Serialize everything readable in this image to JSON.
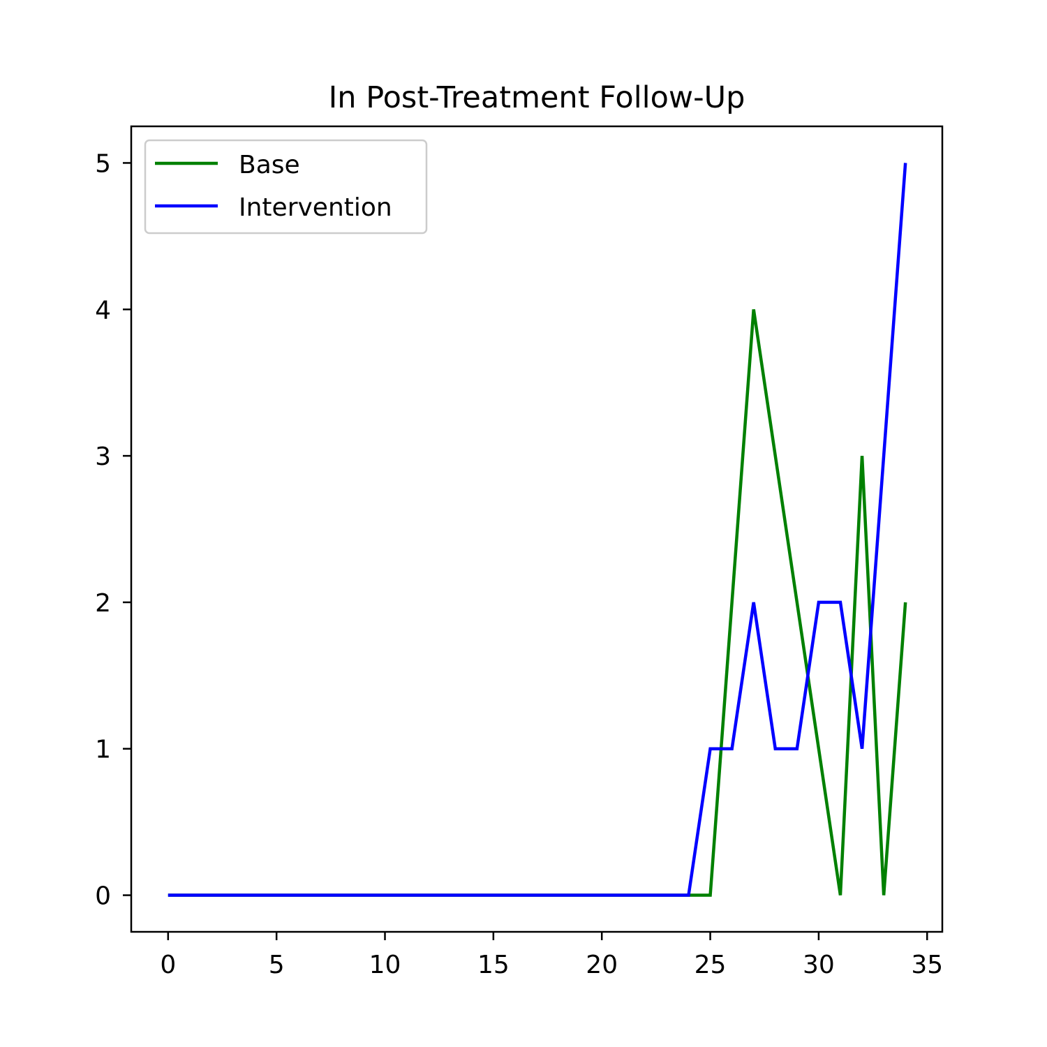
{
  "chart_data": {
    "type": "line",
    "title": "In Post-Treatment Follow-Up",
    "xlabel": "",
    "ylabel": "",
    "xlim": [
      -1.7,
      35.7
    ],
    "ylim": [
      -0.25,
      5.25
    ],
    "xticks": [
      0,
      5,
      10,
      15,
      20,
      25,
      30,
      35
    ],
    "yticks": [
      0,
      1,
      2,
      3,
      4,
      5
    ],
    "grid": false,
    "legend_position": "top-left",
    "x": [
      0,
      1,
      2,
      3,
      4,
      5,
      6,
      7,
      8,
      9,
      10,
      11,
      12,
      13,
      14,
      15,
      16,
      17,
      18,
      19,
      20,
      21,
      22,
      23,
      24,
      25,
      26,
      27,
      28,
      29,
      30,
      31,
      32,
      33,
      34
    ],
    "series": [
      {
        "name": "Base",
        "color": "#008000",
        "values": [
          0,
          0,
          0,
          0,
          0,
          0,
          0,
          0,
          0,
          0,
          0,
          0,
          0,
          0,
          0,
          0,
          0,
          0,
          0,
          0,
          0,
          0,
          0,
          0,
          0,
          0,
          2,
          4,
          3,
          2,
          1,
          0,
          3,
          0,
          2
        ]
      },
      {
        "name": "Intervention",
        "color": "#0000ff",
        "values": [
          0,
          0,
          0,
          0,
          0,
          0,
          0,
          0,
          0,
          0,
          0,
          0,
          0,
          0,
          0,
          0,
          0,
          0,
          0,
          0,
          0,
          0,
          0,
          0,
          0,
          1,
          1,
          2,
          1,
          1,
          2,
          2,
          1,
          3,
          5
        ]
      }
    ]
  }
}
